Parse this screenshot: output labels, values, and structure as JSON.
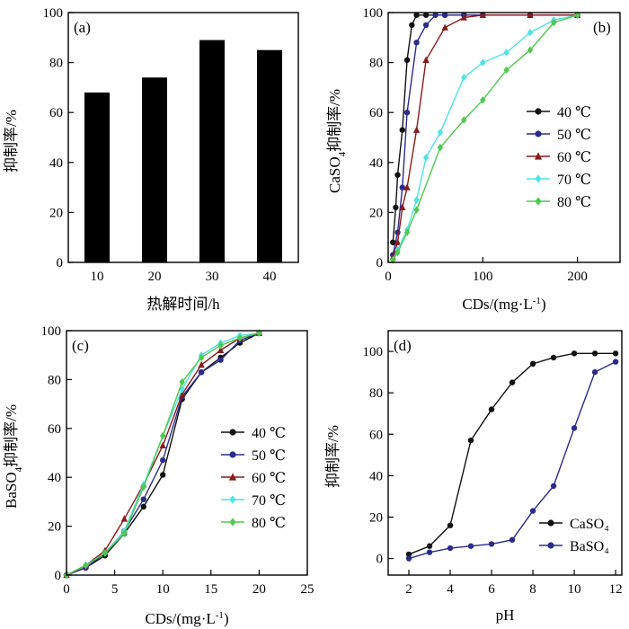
{
  "chart_data": [
    {
      "panel": "(a)",
      "type": "bar",
      "title": "",
      "xlabel": "热解时间/h",
      "ylabel": "抑制率/%",
      "categories": [
        "10",
        "20",
        "30",
        "40"
      ],
      "values": [
        68,
        74,
        89,
        85
      ],
      "ylim": [
        0,
        100
      ],
      "yticks": [
        0,
        20,
        40,
        60,
        80,
        100
      ],
      "bar_color": "#000000"
    },
    {
      "panel": "(b)",
      "type": "line",
      "title": "",
      "xlabel": "CDs/(mg·L⁻¹)",
      "ylabel": "CaSO₄抑制率/%",
      "xlim": [
        0,
        245
      ],
      "ylim": [
        0,
        100
      ],
      "xticks": [
        0,
        100,
        200
      ],
      "yticks": [
        0,
        20,
        40,
        60,
        80,
        100
      ],
      "legend_position": "right",
      "series": [
        {
          "name": "40 ℃",
          "color": "#111111",
          "marker": "circle",
          "x": [
            5,
            8,
            10,
            15,
            20,
            25,
            30,
            40,
            60,
            80,
            100,
            150,
            200
          ],
          "y": [
            8,
            22,
            35,
            53,
            81,
            95,
            99,
            99,
            99,
            99,
            99,
            99,
            99
          ]
        },
        {
          "name": "50 ℃",
          "color": "#2b2b8c",
          "marker": "circle",
          "x": [
            5,
            10,
            15,
            20,
            30,
            40,
            50,
            60,
            80,
            100,
            150,
            200
          ],
          "y": [
            3,
            12,
            30,
            60,
            88,
            95,
            99,
            99,
            99,
            99,
            99,
            99
          ]
        },
        {
          "name": "60 ℃",
          "color": "#8b1a1a",
          "marker": "triangle",
          "x": [
            5,
            10,
            15,
            20,
            30,
            40,
            60,
            80,
            100,
            150,
            200
          ],
          "y": [
            2,
            8,
            22,
            30,
            53,
            81,
            94,
            98,
            99,
            99,
            99
          ]
        },
        {
          "name": "70 ℃",
          "color": "#4fe3e3",
          "marker": "diamond",
          "x": [
            5,
            10,
            20,
            30,
            40,
            55,
            80,
            100,
            125,
            150,
            175,
            200
          ],
          "y": [
            1,
            5,
            13,
            25,
            42,
            52,
            74,
            80,
            84,
            92,
            97,
            99
          ]
        },
        {
          "name": "80 ℃",
          "color": "#4fc94f",
          "marker": "diamond",
          "x": [
            5,
            10,
            20,
            30,
            55,
            80,
            100,
            125,
            150,
            175,
            200
          ],
          "y": [
            1,
            4,
            12,
            21,
            46,
            57,
            65,
            77,
            85,
            96,
            99
          ]
        }
      ]
    },
    {
      "panel": "(c)",
      "type": "line",
      "title": "",
      "xlabel": "CDs/(mg·L⁻¹)",
      "ylabel": "BaSO₄抑制率/%",
      "xlim": [
        0,
        25
      ],
      "ylim": [
        0,
        100
      ],
      "xticks": [
        0,
        5,
        10,
        15,
        20,
        25
      ],
      "yticks": [
        0,
        20,
        40,
        60,
        80,
        100
      ],
      "legend_position": "right",
      "series": [
        {
          "name": "40 ℃",
          "color": "#111111",
          "marker": "circle",
          "x": [
            0,
            2,
            4,
            6,
            8,
            10,
            12,
            14,
            16,
            18,
            20
          ],
          "y": [
            0,
            3,
            8,
            17,
            28,
            41,
            72,
            83,
            89,
            95,
            99
          ]
        },
        {
          "name": "50 ℃",
          "color": "#2b2b8c",
          "marker": "circle",
          "x": [
            0,
            2,
            4,
            6,
            8,
            10,
            12,
            14,
            16,
            18,
            20
          ],
          "y": [
            0,
            3,
            9,
            18,
            31,
            47,
            73,
            83,
            88,
            96,
            99
          ]
        },
        {
          "name": "60 ℃",
          "color": "#8b1a1a",
          "marker": "triangle",
          "x": [
            0,
            2,
            4,
            6,
            8,
            10,
            12,
            14,
            16,
            18,
            20
          ],
          "y": [
            0,
            4,
            10,
            23,
            37,
            53,
            74,
            86,
            92,
            97,
            99
          ]
        },
        {
          "name": "70 ℃",
          "color": "#4fe3e3",
          "marker": "diamond",
          "x": [
            0,
            2,
            4,
            6,
            8,
            10,
            12,
            14,
            16,
            18,
            20
          ],
          "y": [
            0,
            4,
            9,
            18,
            37,
            57,
            76,
            90,
            95,
            98,
            99
          ]
        },
        {
          "name": "80 ℃",
          "color": "#4fc94f",
          "marker": "diamond",
          "x": [
            0,
            2,
            4,
            6,
            8,
            10,
            12,
            14,
            16,
            18,
            20
          ],
          "y": [
            0,
            4,
            9,
            17,
            36,
            57,
            79,
            89,
            94,
            97,
            99
          ]
        }
      ]
    },
    {
      "panel": "(d)",
      "type": "line",
      "title": "",
      "xlabel": "pH",
      "ylabel": "抑制率/%",
      "xlim": [
        1,
        12.3
      ],
      "ylim": [
        -8,
        110
      ],
      "xticks": [
        2,
        4,
        6,
        8,
        10,
        12
      ],
      "yticks": [
        0,
        20,
        40,
        60,
        80,
        100
      ],
      "legend_position": "bottom-right",
      "series": [
        {
          "name": "CaSO₄",
          "color": "#111111",
          "marker": "circle",
          "x": [
            2,
            3,
            4,
            5,
            6,
            7,
            8,
            9,
            10,
            11,
            12
          ],
          "y": [
            2,
            6,
            16,
            57,
            72,
            85,
            94,
            97,
            99,
            99,
            99
          ]
        },
        {
          "name": "BaSO₄",
          "color": "#2b2b8c",
          "marker": "circle",
          "x": [
            2,
            3,
            4,
            5,
            6,
            7,
            8,
            9,
            10,
            11,
            12
          ],
          "y": [
            0,
            3,
            5,
            6,
            7,
            9,
            23,
            35,
            63,
            90,
            95
          ]
        }
      ]
    }
  ]
}
